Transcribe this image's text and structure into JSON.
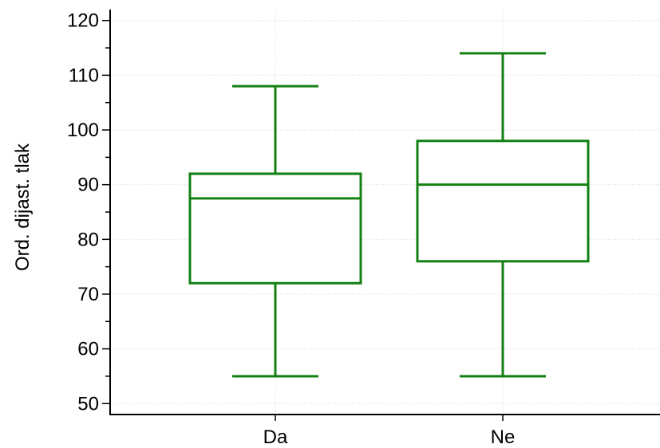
{
  "chart_data": {
    "type": "box",
    "title": "",
    "xlabel": "",
    "ylabel": "Ord. dijast. tlak",
    "ylim": [
      48,
      122
    ],
    "yticks": [
      50,
      60,
      70,
      80,
      90,
      100,
      110,
      120
    ],
    "grid": true,
    "categories": [
      "Da",
      "Ne"
    ],
    "boxes": [
      {
        "category": "Da",
        "whisker_low": 55,
        "q1": 72,
        "median": 87.5,
        "q3": 92,
        "whisker_high": 108
      },
      {
        "category": "Ne",
        "whisker_low": 55,
        "q1": 76,
        "median": 90,
        "q3": 98,
        "whisker_high": 114
      }
    ],
    "colors": {
      "box": "#128012",
      "axis": "#000000",
      "grid": "#d9d9d9"
    }
  }
}
